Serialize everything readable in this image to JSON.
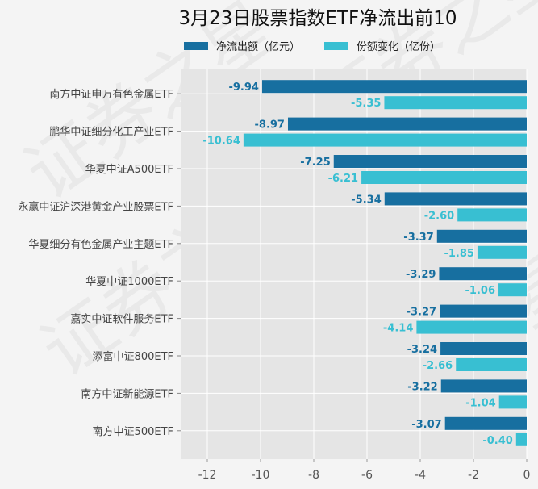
{
  "chart_data": {
    "type": "bar",
    "orientation": "horizontal",
    "title": "3月23日股票指数ETF净流出前10",
    "categories": [
      "南方中证申万有色金属ETF",
      "鹏华中证细分化工产业ETF",
      "华夏中证A500ETF",
      "永赢中证沪深港黄金产业股票ETF",
      "华夏细分有色金属产业主题ETF",
      "华夏中证1000ETF",
      "嘉实中证软件服务ETF",
      "添富中证800ETF",
      "南方中证新能源ETF",
      "南方中证500ETF"
    ],
    "series": [
      {
        "name": "净流出额（亿元）",
        "color": "#176fa0",
        "values": [
          -9.94,
          -8.97,
          -7.25,
          -5.34,
          -3.37,
          -3.29,
          -3.27,
          -3.24,
          -3.22,
          -3.07
        ],
        "labels": [
          "-9.94",
          "-8.97",
          "-7.25",
          "-5.34",
          "-3.37",
          "-3.29",
          "-3.27",
          "-3.24",
          "-3.22",
          "-3.07"
        ]
      },
      {
        "name": "份额变化（亿份）",
        "color": "#38bfd2",
        "values": [
          -5.35,
          -10.64,
          -6.21,
          -2.6,
          -1.85,
          -1.06,
          -4.14,
          -2.66,
          -1.04,
          -0.4
        ],
        "labels": [
          "-5.35",
          "-10.64",
          "-6.21",
          "-2.60",
          "-1.85",
          "-1.06",
          "-4.14",
          "-2.66",
          "-1.04",
          "-0.40"
        ]
      }
    ],
    "xlim": [
      -13,
      0
    ],
    "xticks": [
      "-12",
      "-10",
      "-8",
      "-6",
      "-4",
      "-2",
      "0"
    ],
    "xtick_values": [
      -12,
      -10,
      -8,
      -6,
      -4,
      -2,
      0
    ],
    "grid": true,
    "legend": "top-center",
    "xlabel": "",
    "ylabel": ""
  },
  "watermark": "证券之星"
}
